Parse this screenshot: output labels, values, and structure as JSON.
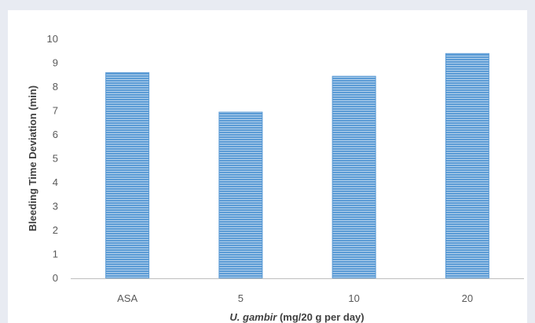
{
  "chart_data": {
    "type": "bar",
    "categories": [
      "ASA",
      "5",
      "10",
      "20"
    ],
    "values": [
      8.6,
      6.95,
      8.45,
      9.4
    ],
    "title": "",
    "xlabel_italic": "U. gambir",
    "xlabel_rest": " (mg/20 g per day)",
    "ylabel": "Bleeding Time Deviation (min)",
    "ylim": [
      0,
      10
    ],
    "yticks": [
      0,
      1,
      2,
      3,
      4,
      5,
      6,
      7,
      8,
      9,
      10
    ],
    "grid": false,
    "legend": "none",
    "bar_color": "#5b9bd5",
    "bar_stripe_color": "#ffffff"
  }
}
